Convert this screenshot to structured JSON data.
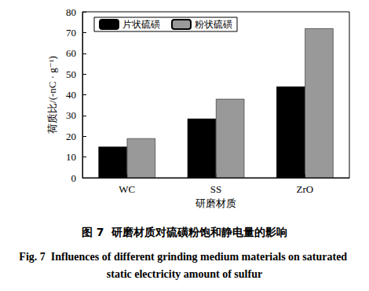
{
  "chart_data": {
    "type": "bar",
    "title": "图 7  研磨材质对硫磺粉饱和静电量的影响",
    "subtitle": "Fig. 7  Influences of different grinding medium materials on saturated static electricity amount of sulfur",
    "x_label": "研磨材质",
    "y_label": "荷质比/(-nC · g⁻¹)",
    "categories": [
      "WC",
      "SS",
      "ZrO"
    ],
    "series": [
      {
        "name": "片状硫磺",
        "color": "#000000",
        "values": [
          15,
          28.5,
          44
        ]
      },
      {
        "name": "粉状硫磺",
        "color": "#999999",
        "values": [
          19,
          38,
          72
        ]
      }
    ],
    "ylim": [
      0,
      80
    ],
    "yticks": [
      0,
      10,
      20,
      30,
      40,
      50,
      60,
      70,
      80
    ],
    "grid": false,
    "legend": "top-left",
    "data_labels": false
  }
}
